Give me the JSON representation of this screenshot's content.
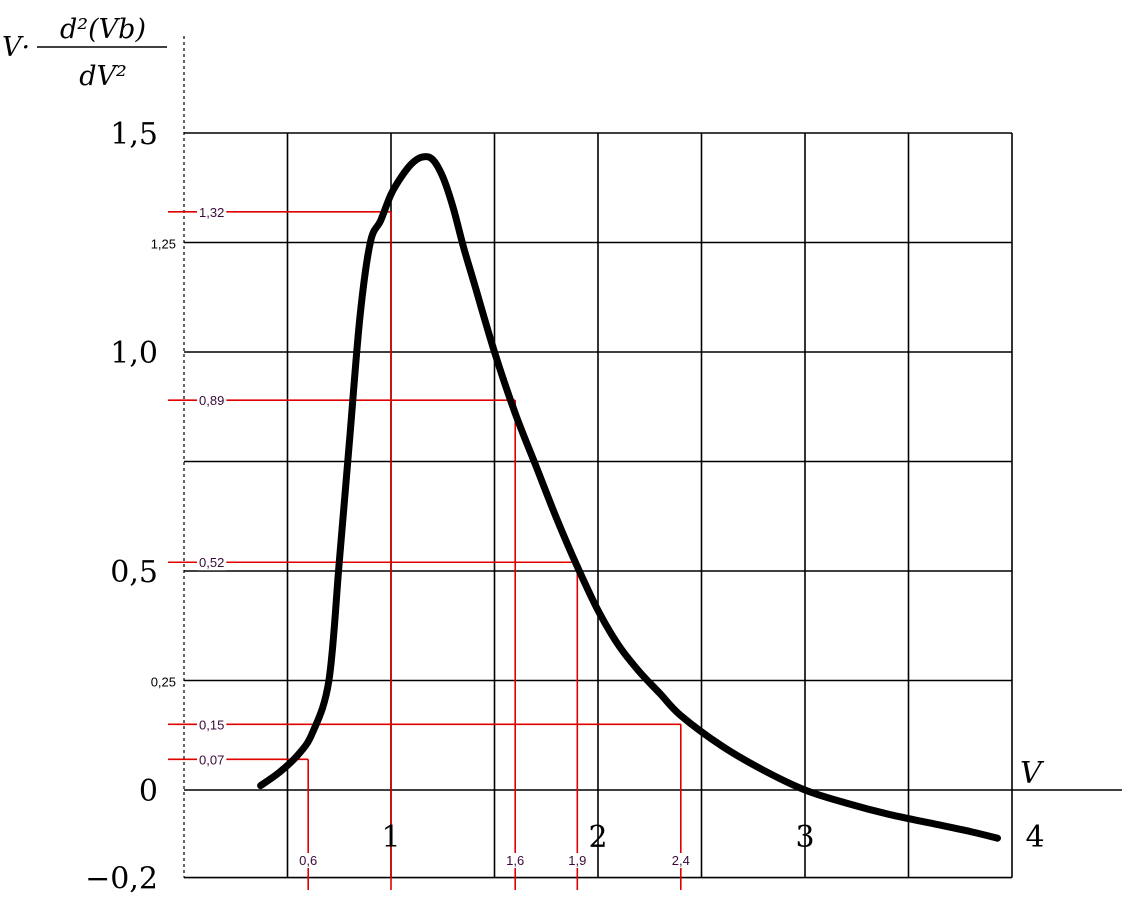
{
  "chart_data": {
    "type": "line",
    "ylabel": {
      "prefix": "V·",
      "numerator": "d²(Vb)",
      "denominator": "dV²"
    },
    "xlabel": "V",
    "xlim": [
      -0.2,
      4.0
    ],
    "ylim": [
      -0.2,
      1.5
    ],
    "grid": true,
    "x_ticks": [
      {
        "value": 1,
        "label": "1"
      },
      {
        "value": 2,
        "label": "2"
      },
      {
        "value": 3,
        "label": "3"
      },
      {
        "value": 4,
        "label": "4"
      }
    ],
    "y_ticks": [
      {
        "value": 1.5,
        "label": "1,5"
      },
      {
        "value": 1.25,
        "label": "1,25"
      },
      {
        "value": 1.0,
        "label": "1,0"
      },
      {
        "value": 0.5,
        "label": "0,5"
      },
      {
        "value": 0.25,
        "label": "0,25"
      },
      {
        "value": 0,
        "label": "0"
      },
      {
        "value": -0.2,
        "label": "−0,2"
      }
    ],
    "series": [
      {
        "color": "#000000",
        "x": [
          0.37,
          0.46,
          0.55,
          0.62,
          0.7,
          0.75,
          0.8,
          0.85,
          0.9,
          0.95,
          1.0,
          1.05,
          1.1,
          1.15,
          1.2,
          1.25,
          1.3,
          1.35,
          1.4,
          1.5,
          1.6,
          1.7,
          1.8,
          1.9,
          2.0,
          2.1,
          2.2,
          2.3,
          2.4,
          2.6,
          2.8,
          3.0,
          3.2,
          3.4,
          3.6,
          3.8,
          3.93
        ],
        "y": [
          0.01,
          0.04,
          0.08,
          0.13,
          0.25,
          0.52,
          0.8,
          1.08,
          1.25,
          1.3,
          1.36,
          1.4,
          1.43,
          1.445,
          1.44,
          1.4,
          1.33,
          1.24,
          1.16,
          1.0,
          0.86,
          0.74,
          0.62,
          0.51,
          0.41,
          0.33,
          0.27,
          0.22,
          0.17,
          0.1,
          0.045,
          0.0,
          -0.03,
          -0.055,
          -0.075,
          -0.095,
          -0.11
        ]
      }
    ],
    "annotations": [
      {
        "x": 0.6,
        "y": 0.07,
        "x_label": "0,6",
        "y_label": "0,07"
      },
      {
        "x": 1.0,
        "y": 1.32,
        "x_label": "",
        "y_label": "1,32"
      },
      {
        "x": 1.6,
        "y": 0.89,
        "x_label": "1,6",
        "y_label": "0,89"
      },
      {
        "x": 1.9,
        "y": 0.52,
        "x_label": "1,9",
        "y_label": "0,52"
      },
      {
        "x": 2.4,
        "y": 0.15,
        "x_label": "2,4",
        "y_label": "0,15"
      }
    ],
    "annotation_color": "#e00000"
  }
}
